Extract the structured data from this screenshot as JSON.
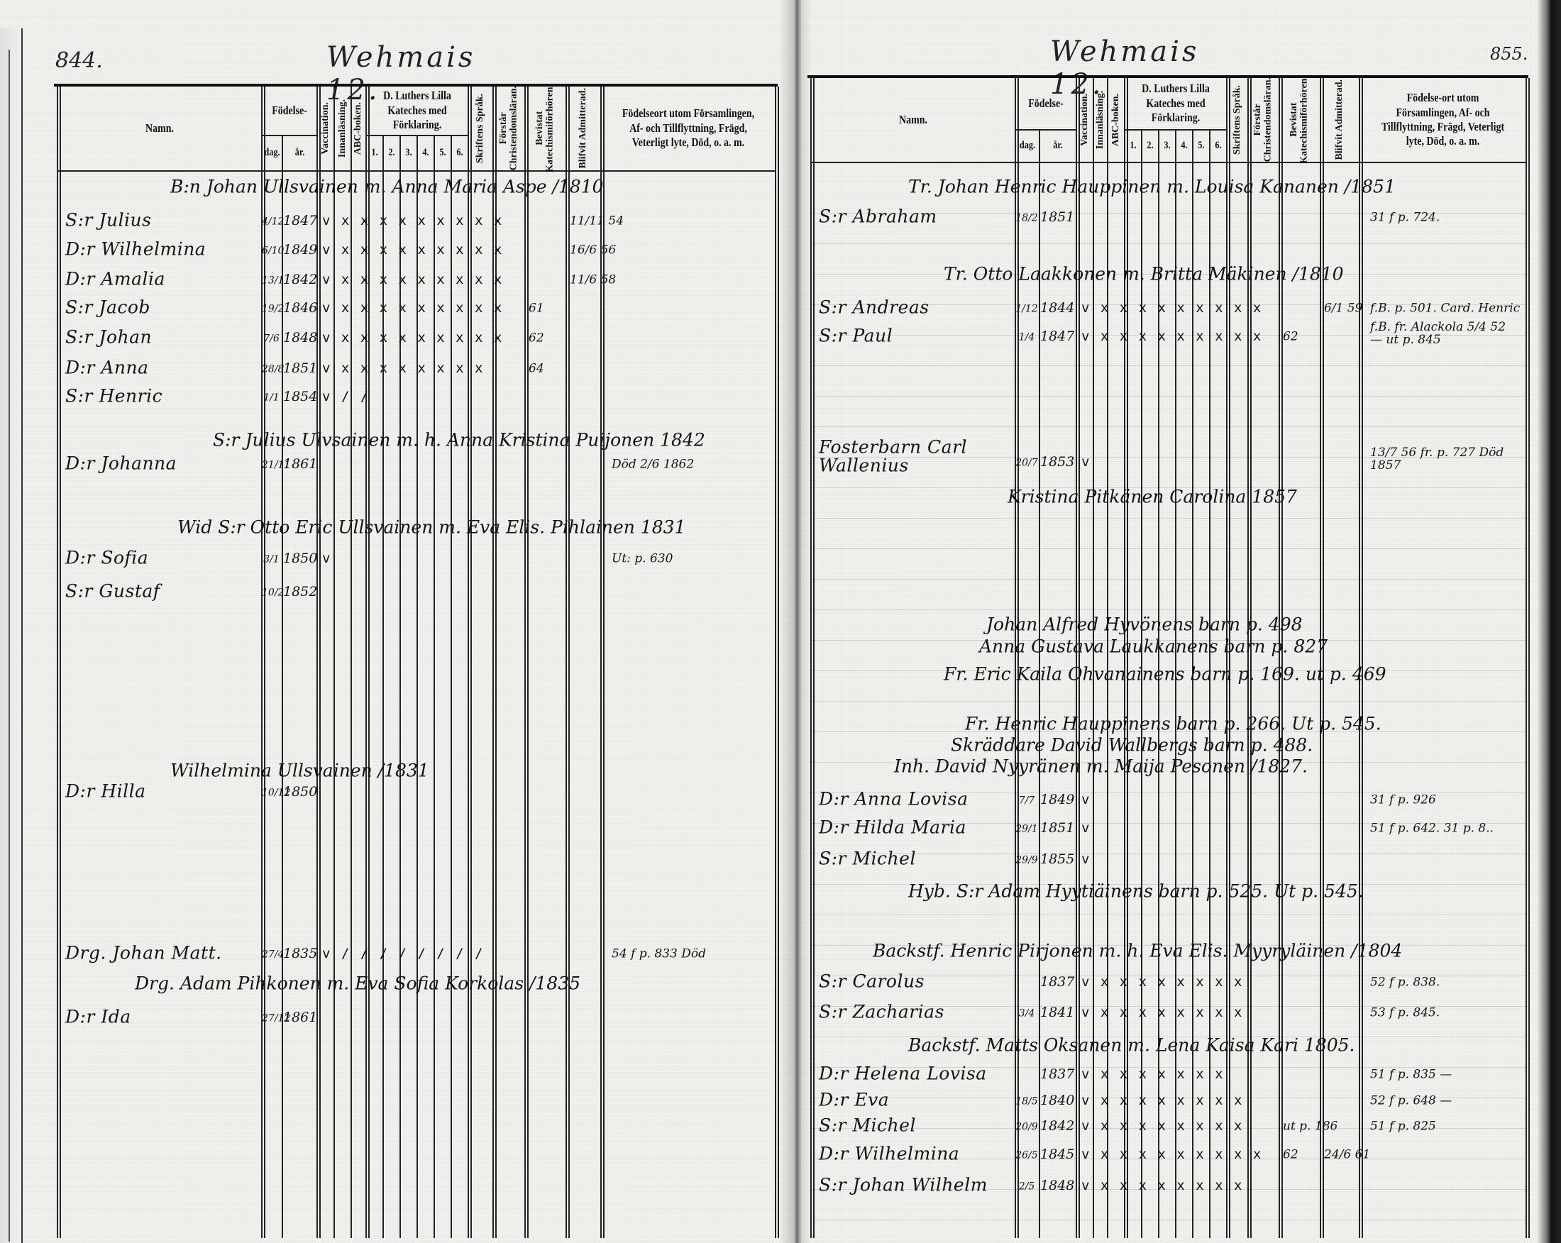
{
  "left_page": {
    "page_number": "844.",
    "parish_title": "Wehmais 12.",
    "header": {
      "namn": "Namn.",
      "fodelse": "Födelse-",
      "dag": "dag.",
      "ar": "år.",
      "vaccination": "Vaccination.",
      "innanlasning": "Innanläsning.",
      "abc": "ABC-boken.",
      "luther": "D. Luthers Lilla Kateches med Förklaring.",
      "luther_cols": [
        "1.",
        "2.",
        "3.",
        "4.",
        "5.",
        "6."
      ],
      "skriftens": "Skriftens Språk.",
      "forstar": "Förstår Christendomsläran.",
      "bevistat": "Bevistat Katechismiförhören.",
      "blifvit": "Blifvit Admitterad.",
      "remarks": "Födelseort utom Församlingen, Af- och Tillflyttning, Frägd, Veterligt lyte, Död, o. a. m."
    },
    "entries": [
      {
        "type": "family",
        "text": "B:n Johan Ullsvainen m. Anna Maria Aspe /1810"
      },
      {
        "type": "child",
        "name": "S:r Julius",
        "day": "4/12",
        "year": "1847",
        "marks": "v x x x x x x x x x",
        "admitted": "11/11 54"
      },
      {
        "type": "child",
        "name": "D:r Wilhelmina",
        "day": "6/10",
        "year": "1849",
        "marks": "v x x x x x x x x x",
        "admitted": "16/6 56"
      },
      {
        "type": "child",
        "name": "D:r Amalia",
        "day": "13/1",
        "year": "1842",
        "marks": "v x x x x x x x x x",
        "admitted": "11/6 58"
      },
      {
        "type": "child",
        "name": "S:r Jacob",
        "day": "19/2",
        "year": "1846",
        "marks": "v x x x x x x x x x",
        "bevistat": "61"
      },
      {
        "type": "child",
        "name": "S:r Johan",
        "day": "7/6",
        "year": "1848",
        "marks": "v x x x x x x x x x",
        "bevistat": "62"
      },
      {
        "type": "child",
        "name": "D:r Anna",
        "day": "28/8",
        "year": "1851",
        "marks": "v x x x x x x x x",
        "bevistat": "64"
      },
      {
        "type": "child",
        "name": "S:r Henric",
        "day": "1/1",
        "year": "1854",
        "marks": "v / /"
      },
      {
        "type": "family",
        "text": "S:r Julius Ulvsainen m. h. Anna Kristina Puijonen 1842"
      },
      {
        "type": "child",
        "name": "D:r Johanna",
        "day": "21/11",
        "year": "1861",
        "remark": "Död 2/6 1862"
      },
      {
        "type": "family",
        "text": "Wid S:r Otto Eric Ullsvainen m. Eva Elis. Pihlainen 1831"
      },
      {
        "type": "child",
        "name": "D:r Sofia",
        "day": "3/1",
        "year": "1850",
        "marks": "v",
        "remark": "Ut: p. 630"
      },
      {
        "type": "child",
        "name": "S:r Gustaf",
        "day": "10/2",
        "year": "1852"
      },
      {
        "type": "family",
        "text": "Wilhelmina Ullsvainen /1831"
      },
      {
        "type": "child",
        "name": "D:r Hilla",
        "day": "10/12",
        "year": "1850"
      },
      {
        "type": "child",
        "name": "Drg. Johan Matt.",
        "day": "27/4",
        "year": "1835",
        "marks": "v / / / / / / / /",
        "remark": "54 f p. 833 Död"
      },
      {
        "type": "family",
        "text": "Drg. Adam Pihkonen m. Eva Sofia Korkolas /1835"
      },
      {
        "type": "child",
        "name": "D:r Ida",
        "day": "27/12",
        "year": "1861"
      }
    ]
  },
  "right_page": {
    "page_number": "855.",
    "parish_title": "Wehmais 12.",
    "header": {
      "namn": "Namn.",
      "fodelse": "Födelse-",
      "dag": "dag.",
      "ar": "år.",
      "vaccination": "Vaccination.",
      "innanlasning": "Innanläsning.",
      "abc": "ABC-boken.",
      "luther": "D. Luthers Lilla Kateches med Förklaring.",
      "luther_cols": [
        "1.",
        "2.",
        "3.",
        "4.",
        "5.",
        "6."
      ],
      "skriftens": "Skriftens Språk.",
      "forstar": "Förstår Christendomsläran.",
      "bevistat": "Bevistat Katechismiförhören.",
      "blifvit": "Blifvit Admitterad.",
      "remarks": "Födelse-ort utom Församlingen, Af- och Tillflyttning, Frägd, Veterligt lyte, Död, o. a. m."
    },
    "entries": [
      {
        "type": "family",
        "text": "Tr. Johan Henric Hauppinen m. Louisa Kananen /1851"
      },
      {
        "type": "child",
        "name": "S:r Abraham",
        "day": "18/2",
        "year": "1851",
        "remark": "31 f p. 724."
      },
      {
        "type": "family",
        "text": "Tr. Otto Laakkonen m. Britta Mäkinen /1810"
      },
      {
        "type": "child",
        "name": "S:r Andreas",
        "day": "1/12",
        "year": "1844",
        "marks": "v x x x x x x x x x",
        "admitted": "6/1 59",
        "remark": "f.B. p. 501. Card. Henric"
      },
      {
        "type": "child",
        "name": "S:r Paul",
        "day": "1/4",
        "year": "1847",
        "marks": "v x x x x x x x x x",
        "bevistat": "62",
        "remark": "f.B. fr. Alackola 5/4 52 — ut p. 845"
      },
      {
        "type": "child",
        "name": "Fosterbarn Carl Wallenius",
        "day": "20/7",
        "year": "1853",
        "marks": "v",
        "remark": "13/7 56 fr. p. 727 Död 1857"
      },
      {
        "type": "note",
        "text": "Kristina Pitkänen Carolina 1857"
      },
      {
        "type": "note",
        "text": "Johan Alfred Hyvönens barn p. 498"
      },
      {
        "type": "note",
        "text": "Anna Gustava Laukkanens barn p. 827"
      },
      {
        "type": "note",
        "text": "Fr. Eric Kaila Ohvanainens barn p. 169. ut p. 469"
      },
      {
        "type": "note",
        "text": "Fr. Henric Hauppinens barn p. 266. Ut p. 545."
      },
      {
        "type": "note",
        "text": "Skräddare David Wallbergs barn p. 488."
      },
      {
        "type": "family",
        "text": "Inh. David Nyyränen m. Maija Pesonen /1827."
      },
      {
        "type": "child",
        "name": "D:r Anna Lovisa",
        "day": "7/7",
        "year": "1849",
        "marks": "v",
        "remark": "31 f p. 926"
      },
      {
        "type": "child",
        "name": "D:r Hilda Maria",
        "day": "29/1",
        "year": "1851",
        "marks": "v",
        "remark": "51 f p. 642. 31 p. 8.."
      },
      {
        "type": "child",
        "name": "S:r Michel",
        "day": "29/9",
        "year": "1855",
        "marks": "v"
      },
      {
        "type": "note",
        "text": "Hyb. S:r Adam Hyytiäinens barn p. 525. Ut p. 545."
      },
      {
        "type": "family",
        "text": "Backstf. Henric Pirjonen m. h. Eva Elis. Myyryläinen /1804"
      },
      {
        "type": "child",
        "name": "S:r Carolus",
        "day": "",
        "year": "1837",
        "marks": "v x x x x x x x x",
        "remark": "52 f p. 838."
      },
      {
        "type": "child",
        "name": "S:r Zacharias",
        "day": "3/4",
        "year": "1841",
        "marks": "v x x x x x x x x",
        "remark": "53 f p. 845."
      },
      {
        "type": "family",
        "text": "Backstf. Matts Oksanen m. Lena Kaisa Kari 1805."
      },
      {
        "type": "child",
        "name": "D:r Helena Lovisa",
        "day": "",
        "year": "1837",
        "marks": "v x x x x x x x",
        "remark": "51 f p. 835 —"
      },
      {
        "type": "child",
        "name": "D:r Eva",
        "day": "18/5",
        "year": "1840",
        "marks": "v x x x x x x x x",
        "remark": "52 f p. 648 —"
      },
      {
        "type": "child",
        "name": "S:r Michel",
        "day": "20/9",
        "year": "1842",
        "marks": "v x x x x x x x x",
        "bevistat": "ut p. 186",
        "remark": "51 f p. 825"
      },
      {
        "type": "child",
        "name": "D:r Wilhelmina",
        "day": "26/5",
        "year": "1845",
        "marks": "v x x x x x x x x x",
        "bevistat": "62",
        "admitted": "24/6 61"
      },
      {
        "type": "child",
        "name": "S:r Johan Wilhelm",
        "day": "2/5",
        "year": "1848",
        "marks": "v x x x x x x x x"
      }
    ]
  }
}
